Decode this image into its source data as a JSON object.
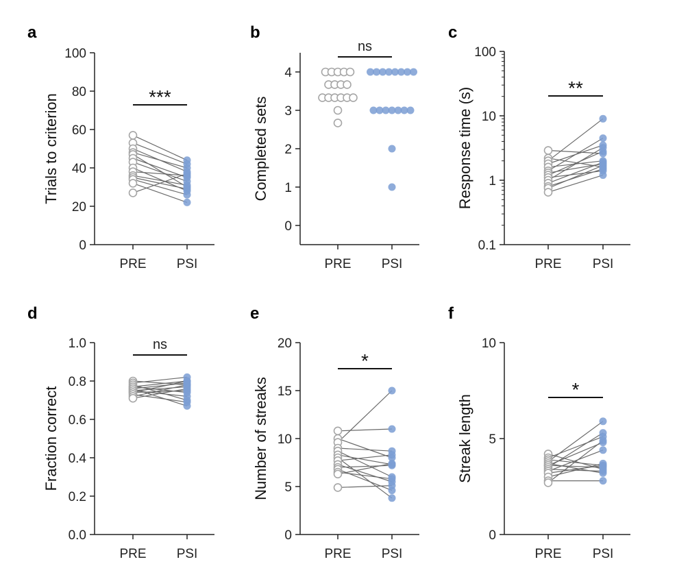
{
  "colors": {
    "pre_stroke": "#a6a6a6",
    "psi_fill": "#7b9ed3",
    "psi_fill_dark": "#4b76b8",
    "line": "#6a6a6a",
    "axis": "#222222"
  },
  "chart_data": [
    {
      "panel": "a",
      "type": "paired-dot",
      "scale": "linear",
      "ylabel": "Trials to criterion",
      "ylim": [
        0,
        100
      ],
      "yticks": [
        0,
        20,
        40,
        60,
        80,
        100
      ],
      "ytick_labels": [
        "0",
        "20",
        "40",
        "60",
        "80",
        "100"
      ],
      "categories": [
        "PRE",
        "PSI"
      ],
      "connect": true,
      "significance": "***",
      "pre": [
        57,
        53,
        50,
        48,
        47,
        45,
        43,
        40,
        38,
        36,
        35,
        34,
        32,
        27
      ],
      "psi": [
        44,
        42,
        38,
        40,
        30,
        35,
        33,
        28,
        36,
        31,
        29,
        26,
        22,
        37
      ]
    },
    {
      "panel": "b",
      "type": "dot",
      "scale": "linear",
      "ylabel": "Completed sets",
      "ylim": [
        -0.5,
        4.5
      ],
      "yticks": [
        0,
        1,
        2,
        3,
        4
      ],
      "ytick_labels": [
        "0",
        "1",
        "2",
        "3",
        "4"
      ],
      "categories": [
        "PRE",
        "PSI"
      ],
      "connect": false,
      "significance": "ns",
      "pre": [
        4,
        4,
        4,
        4,
        4,
        3.67,
        3.67,
        3.67,
        3.67,
        3.33,
        3.33,
        3.33,
        3.33,
        3.33,
        3.33,
        3,
        2.67
      ],
      "psi": [
        4,
        4,
        4,
        4,
        4,
        4,
        4,
        4,
        3,
        3,
        3,
        3,
        3,
        3,
        3,
        2,
        1
      ]
    },
    {
      "panel": "c",
      "type": "paired-dot",
      "scale": "log",
      "ylabel": "Response time (s)",
      "ylim": [
        0.1,
        100
      ],
      "yticks": [
        0.1,
        1,
        10,
        100
      ],
      "ytick_labels": [
        "0.1",
        "1",
        "10",
        "100"
      ],
      "categories": [
        "PRE",
        "PSI"
      ],
      "connect": true,
      "significance": "**",
      "pre": [
        2.9,
        2.2,
        2.0,
        1.8,
        1.6,
        1.4,
        1.3,
        1.2,
        1.1,
        1.0,
        0.9,
        0.8,
        0.75,
        0.65
      ],
      "psi": [
        2.6,
        1.6,
        9.0,
        3.5,
        2.0,
        4.5,
        1.8,
        2.8,
        1.4,
        3.2,
        1.9,
        1.5,
        1.7,
        1.2
      ]
    },
    {
      "panel": "d",
      "type": "paired-dot",
      "scale": "linear",
      "ylabel": "Fraction correct",
      "ylim": [
        0,
        1
      ],
      "yticks": [
        0,
        0.2,
        0.4,
        0.6,
        0.8,
        1.0
      ],
      "ytick_labels": [
        "0.0",
        "0.2",
        "0.4",
        "0.6",
        "0.8",
        "1.0"
      ],
      "categories": [
        "PRE",
        "PSI"
      ],
      "connect": true,
      "significance": "ns",
      "pre": [
        0.8,
        0.79,
        0.78,
        0.77,
        0.77,
        0.76,
        0.76,
        0.75,
        0.75,
        0.74,
        0.74,
        0.73,
        0.72,
        0.71
      ],
      "psi": [
        0.78,
        0.82,
        0.7,
        0.8,
        0.74,
        0.79,
        0.67,
        0.77,
        0.72,
        0.8,
        0.75,
        0.69,
        0.78,
        0.76
      ]
    },
    {
      "panel": "e",
      "type": "paired-dot",
      "scale": "linear",
      "ylabel": "Number of streaks",
      "ylim": [
        0,
        20
      ],
      "yticks": [
        0,
        5,
        10,
        15,
        20
      ],
      "ytick_labels": [
        "0",
        "5",
        "10",
        "15",
        "20"
      ],
      "categories": [
        "PRE",
        "PSI"
      ],
      "connect": true,
      "significance": "*",
      "pre": [
        10.8,
        10.0,
        9.6,
        9.0,
        8.7,
        8.3,
        8.0,
        7.7,
        7.3,
        7.0,
        6.8,
        6.5,
        6.3,
        4.9
      ],
      "psi": [
        11.0,
        8.0,
        15.0,
        8.7,
        6.0,
        7.3,
        3.8,
        8.3,
        5.5,
        7.2,
        4.6,
        5.8,
        7.4,
        5.1
      ]
    },
    {
      "panel": "f",
      "type": "paired-dot",
      "scale": "linear",
      "ylabel": "Streak length",
      "ylim": [
        0,
        10
      ],
      "yticks": [
        0,
        5,
        10
      ],
      "ytick_labels": [
        "0",
        "5",
        "10"
      ],
      "categories": [
        "PRE",
        "PSI"
      ],
      "connect": true,
      "significance": "*",
      "pre": [
        4.2,
        4.0,
        3.9,
        3.8,
        3.7,
        3.6,
        3.6,
        3.5,
        3.4,
        3.3,
        3.2,
        3.0,
        2.8,
        2.7
      ],
      "psi": [
        3.4,
        5.1,
        3.6,
        5.9,
        3.2,
        4.8,
        3.5,
        5.3,
        3.3,
        4.4,
        3.6,
        3.7,
        2.8,
        4.9
      ]
    }
  ]
}
